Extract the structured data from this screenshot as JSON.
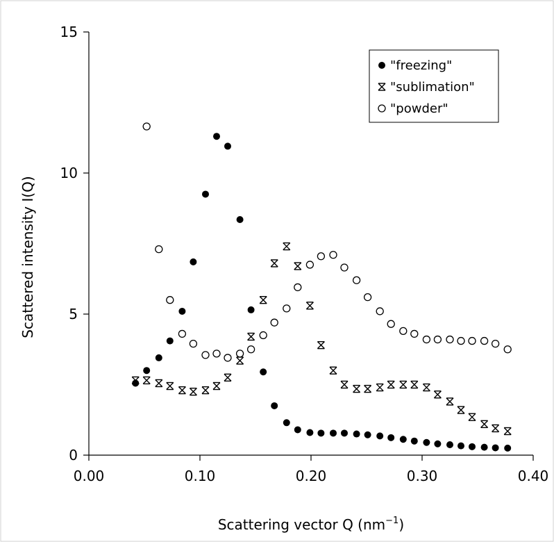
{
  "chart_data": {
    "type": "scatter",
    "title": "",
    "xlabel": "Scattering vector Q (nm",
    "xlabel_sup": "−1",
    "xlabel_tail": ")",
    "ylabel": "Scattered intensity I(Q)",
    "xlim": [
      0,
      0.4
    ],
    "ylim": [
      0,
      15
    ],
    "x_ticks": [
      0.0,
      0.1,
      0.2,
      0.3,
      0.4
    ],
    "x_tick_labels": [
      "0.00",
      "0.10",
      "0.20",
      "0.30",
      "0.40"
    ],
    "y_ticks": [
      0,
      5,
      10,
      15
    ],
    "y_tick_labels": [
      "0",
      "5",
      "10",
      "15"
    ],
    "grid": false,
    "legend_position": "top-right",
    "series": [
      {
        "name": "\"freezing\"",
        "marker": "filled-circle",
        "color": "#000000",
        "points": [
          [
            0.042,
            2.55
          ],
          [
            0.052,
            3.0
          ],
          [
            0.063,
            3.45
          ],
          [
            0.073,
            4.05
          ],
          [
            0.084,
            5.1
          ],
          [
            0.094,
            6.85
          ],
          [
            0.105,
            9.25
          ],
          [
            0.115,
            11.3
          ],
          [
            0.125,
            10.95
          ],
          [
            0.136,
            8.35
          ],
          [
            0.146,
            5.15
          ],
          [
            0.157,
            2.95
          ],
          [
            0.167,
            1.75
          ],
          [
            0.178,
            1.15
          ],
          [
            0.188,
            0.9
          ],
          [
            0.199,
            0.8
          ],
          [
            0.209,
            0.78
          ],
          [
            0.22,
            0.78
          ],
          [
            0.23,
            0.78
          ],
          [
            0.241,
            0.75
          ],
          [
            0.251,
            0.72
          ],
          [
            0.262,
            0.68
          ],
          [
            0.272,
            0.62
          ],
          [
            0.283,
            0.56
          ],
          [
            0.293,
            0.5
          ],
          [
            0.304,
            0.45
          ],
          [
            0.314,
            0.4
          ],
          [
            0.325,
            0.37
          ],
          [
            0.335,
            0.33
          ],
          [
            0.345,
            0.3
          ],
          [
            0.356,
            0.28
          ],
          [
            0.366,
            0.26
          ],
          [
            0.377,
            0.25
          ]
        ]
      },
      {
        "name": "\"sublimation\"",
        "marker": "star",
        "color": "#000000",
        "points": [
          [
            0.042,
            2.65
          ],
          [
            0.052,
            2.65
          ],
          [
            0.063,
            2.55
          ],
          [
            0.073,
            2.45
          ],
          [
            0.084,
            2.3
          ],
          [
            0.094,
            2.25
          ],
          [
            0.105,
            2.3
          ],
          [
            0.115,
            2.45
          ],
          [
            0.125,
            2.75
          ],
          [
            0.136,
            3.35
          ],
          [
            0.146,
            4.2
          ],
          [
            0.157,
            5.5
          ],
          [
            0.167,
            6.8
          ],
          [
            0.178,
            7.4
          ],
          [
            0.188,
            6.7
          ],
          [
            0.199,
            5.3
          ],
          [
            0.209,
            3.9
          ],
          [
            0.22,
            3.0
          ],
          [
            0.23,
            2.5
          ],
          [
            0.241,
            2.35
          ],
          [
            0.251,
            2.35
          ],
          [
            0.262,
            2.4
          ],
          [
            0.272,
            2.5
          ],
          [
            0.283,
            2.5
          ],
          [
            0.293,
            2.5
          ],
          [
            0.304,
            2.4
          ],
          [
            0.314,
            2.15
          ],
          [
            0.325,
            1.9
          ],
          [
            0.335,
            1.6
          ],
          [
            0.345,
            1.35
          ],
          [
            0.356,
            1.1
          ],
          [
            0.366,
            0.95
          ],
          [
            0.377,
            0.85
          ]
        ]
      },
      {
        "name": "\"powder\"",
        "marker": "open-circle",
        "color": "#000000",
        "points": [
          [
            0.052,
            11.65
          ],
          [
            0.063,
            7.3
          ],
          [
            0.073,
            5.5
          ],
          [
            0.084,
            4.3
          ],
          [
            0.094,
            3.95
          ],
          [
            0.105,
            3.55
          ],
          [
            0.115,
            3.6
          ],
          [
            0.125,
            3.45
          ],
          [
            0.136,
            3.6
          ],
          [
            0.146,
            3.75
          ],
          [
            0.157,
            4.25
          ],
          [
            0.167,
            4.7
          ],
          [
            0.178,
            5.2
          ],
          [
            0.188,
            5.95
          ],
          [
            0.199,
            6.75
          ],
          [
            0.209,
            7.05
          ],
          [
            0.22,
            7.1
          ],
          [
            0.23,
            6.65
          ],
          [
            0.241,
            6.2
          ],
          [
            0.251,
            5.6
          ],
          [
            0.262,
            5.1
          ],
          [
            0.272,
            4.65
          ],
          [
            0.283,
            4.4
          ],
          [
            0.293,
            4.3
          ],
          [
            0.304,
            4.1
          ],
          [
            0.314,
            4.1
          ],
          [
            0.325,
            4.1
          ],
          [
            0.335,
            4.05
          ],
          [
            0.345,
            4.05
          ],
          [
            0.356,
            4.05
          ],
          [
            0.366,
            3.95
          ],
          [
            0.377,
            3.75
          ]
        ]
      }
    ]
  }
}
